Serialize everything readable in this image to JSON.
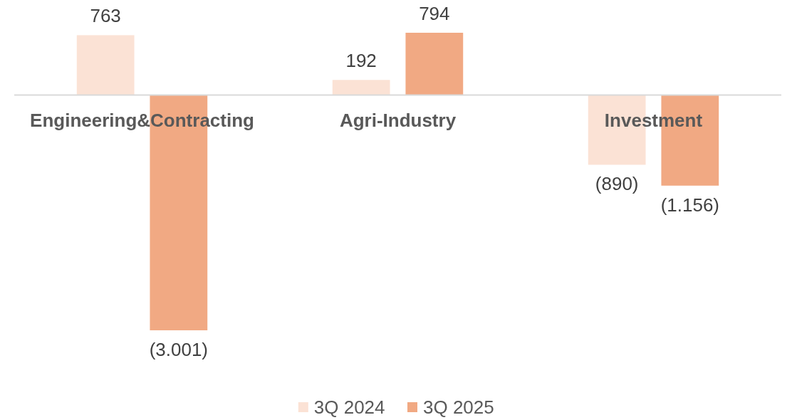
{
  "chart_data": {
    "type": "bar",
    "categories": [
      "Engineering&Contracting",
      "Agri-Industry",
      "Investment"
    ],
    "series": [
      {
        "name": "3Q 2024",
        "color": "#fbe2d5",
        "values": [
          763,
          192,
          -890
        ],
        "value_labels": [
          "763",
          "192",
          "(890)"
        ]
      },
      {
        "name": "3Q 2025",
        "color": "#f1a983",
        "values": [
          -3001,
          794,
          -1156
        ],
        "value_labels": [
          "(3.001)",
          "794",
          "(1.156)"
        ]
      }
    ],
    "legend": "bottom"
  }
}
